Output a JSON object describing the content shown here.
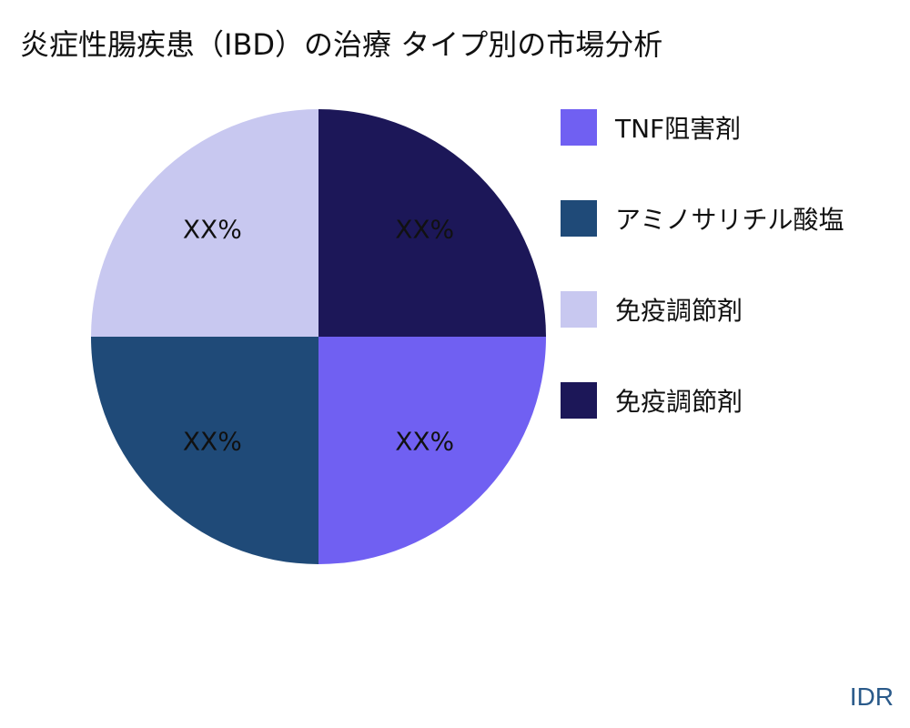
{
  "chart_data": {
    "type": "pie",
    "title": "炎症性腸疾患（IBD）の治療 タイプ別の市場分析",
    "slices": [
      {
        "name": "TNF阻害剤",
        "value": 25,
        "label": "XX%",
        "color": "#7060f2"
      },
      {
        "name": "アミノサリチル酸塩",
        "value": 25,
        "label": "XX%",
        "color": "#1f4a78"
      },
      {
        "name": "免疫調節剤",
        "value": 25,
        "label": "XX%",
        "color": "#c8c8f0"
      },
      {
        "name": "免疫調節剤",
        "value": 25,
        "label": "XX%",
        "color": "#1c1758"
      }
    ],
    "legend_position": "right"
  },
  "watermark": "IDR"
}
